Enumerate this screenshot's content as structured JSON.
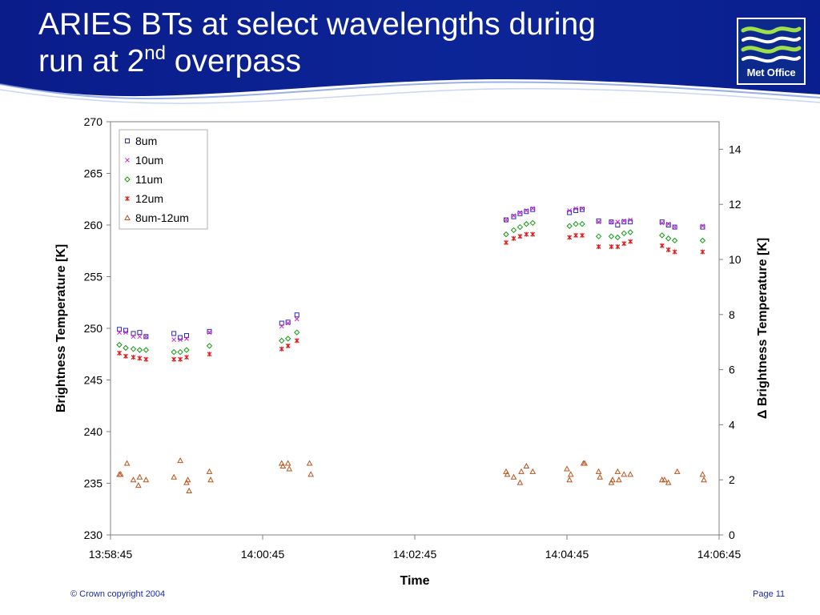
{
  "header": {
    "title_line1": "ARIES BTs at select wavelengths during",
    "title_line2_prefix": "run at 2",
    "title_line2_sup": "nd",
    "title_line2_suffix": " overpass",
    "logo_text": "Met Office",
    "banner_color": "#0a1f8f"
  },
  "footer": {
    "copyright": "© Crown copyright 2004",
    "page": "Page 11"
  },
  "chart_data": {
    "type": "scatter",
    "xlabel": "Time",
    "ylabel": "Brightness Temperature [K]",
    "y2label": "Δ Brightness Temperature [K]",
    "x_ticks": [
      "13:58:45",
      "14:00:45",
      "14:02:45",
      "14:04:45",
      "14:06:45"
    ],
    "x_tick_seconds": [
      0,
      120,
      240,
      360,
      480
    ],
    "xlim_seconds": [
      0,
      480
    ],
    "ylim": [
      230,
      270
    ],
    "y_ticks": [
      230,
      235,
      240,
      245,
      250,
      255,
      260,
      265,
      270
    ],
    "y2lim": [
      0,
      15
    ],
    "y2_ticks": [
      0,
      2,
      4,
      6,
      8,
      10,
      12,
      14
    ],
    "grid": false,
    "legend_position": "top-left",
    "series": [
      {
        "name": "8um",
        "marker": "square",
        "color": "#2a2ab4",
        "axis": "left",
        "x": [
          7,
          12,
          18,
          23,
          28,
          50,
          55,
          60,
          78,
          135,
          140,
          147,
          312,
          318,
          323,
          328,
          333,
          362,
          367,
          372,
          385,
          395,
          400,
          405,
          410,
          435,
          440,
          445,
          467
        ],
        "y": [
          249.9,
          249.8,
          249.5,
          249.6,
          249.2,
          249.5,
          249.1,
          249.3,
          249.7,
          250.5,
          250.6,
          251.3,
          260.5,
          260.8,
          261.1,
          261.3,
          261.5,
          261.2,
          261.4,
          261.5,
          260.4,
          260.3,
          260.0,
          260.3,
          260.3,
          260.3,
          260.0,
          259.8,
          259.8
        ]
      },
      {
        "name": "10um",
        "marker": "x",
        "color": "#cc22cc",
        "axis": "left",
        "x": [
          7,
          12,
          18,
          23,
          28,
          50,
          55,
          60,
          78,
          135,
          140,
          147,
          312,
          318,
          323,
          328,
          333,
          362,
          367,
          372,
          385,
          395,
          400,
          405,
          410,
          435,
          440,
          445,
          467
        ],
        "y": [
          249.6,
          249.6,
          249.2,
          249.2,
          249.2,
          248.9,
          248.9,
          249.0,
          249.6,
          250.2,
          250.5,
          250.9,
          260.5,
          260.9,
          261.2,
          261.4,
          261.6,
          261.4,
          261.6,
          261.6,
          260.3,
          260.3,
          260.3,
          260.4,
          260.5,
          260.2,
          260.1,
          259.8,
          259.9
        ]
      },
      {
        "name": "11um",
        "marker": "diamond",
        "color": "#139a13",
        "axis": "left",
        "x": [
          7,
          12,
          18,
          23,
          28,
          50,
          55,
          60,
          78,
          135,
          140,
          147,
          312,
          318,
          323,
          328,
          333,
          362,
          367,
          372,
          385,
          395,
          400,
          405,
          410,
          435,
          440,
          445,
          467
        ],
        "y": [
          248.4,
          248.1,
          248.0,
          247.9,
          247.9,
          247.7,
          247.7,
          247.9,
          248.3,
          248.8,
          249.0,
          249.6,
          259.1,
          259.5,
          259.8,
          260.1,
          260.2,
          259.9,
          260.1,
          260.1,
          258.9,
          258.9,
          258.8,
          259.2,
          259.3,
          259.0,
          258.7,
          258.5,
          258.5
        ]
      },
      {
        "name": "12um",
        "marker": "star",
        "color": "#e01818",
        "axis": "left",
        "x": [
          7,
          12,
          18,
          23,
          28,
          50,
          55,
          60,
          78,
          135,
          140,
          147,
          312,
          318,
          323,
          328,
          333,
          362,
          367,
          372,
          385,
          395,
          400,
          405,
          410,
          435,
          440,
          445,
          467
        ],
        "y": [
          247.6,
          247.3,
          247.2,
          247.1,
          247.0,
          247.0,
          247.0,
          247.2,
          247.5,
          248.0,
          248.3,
          248.8,
          258.3,
          258.7,
          258.9,
          259.1,
          259.1,
          258.8,
          259.0,
          259.0,
          257.9,
          257.9,
          257.9,
          258.2,
          258.4,
          258.0,
          257.6,
          257.4,
          257.4
        ]
      },
      {
        "name": "8um-12um",
        "marker": "triangle",
        "color": "#b8531c",
        "axis": "right",
        "x": [
          7,
          8,
          13,
          18,
          22,
          23,
          28,
          50,
          55,
          60,
          61,
          62,
          78,
          79,
          135,
          136,
          140,
          141,
          157,
          158,
          312,
          313,
          318,
          323,
          324,
          328,
          333,
          360,
          362,
          363,
          373,
          374,
          385,
          386,
          395,
          396,
          400,
          401,
          405,
          410,
          435,
          437,
          440,
          447,
          467,
          468
        ],
        "y": [
          2.2,
          2.2,
          2.6,
          2.0,
          1.8,
          2.1,
          2.0,
          2.1,
          2.7,
          1.9,
          2.0,
          1.6,
          2.3,
          2.0,
          2.6,
          2.5,
          2.6,
          2.4,
          2.6,
          2.2,
          2.3,
          2.2,
          2.1,
          1.9,
          2.3,
          2.5,
          2.3,
          2.4,
          2.0,
          2.2,
          2.6,
          2.6,
          2.3,
          2.1,
          1.9,
          2.0,
          2.3,
          2.0,
          2.2,
          2.2,
          2.0,
          2.0,
          1.9,
          2.3,
          2.2,
          2.0
        ]
      }
    ]
  }
}
